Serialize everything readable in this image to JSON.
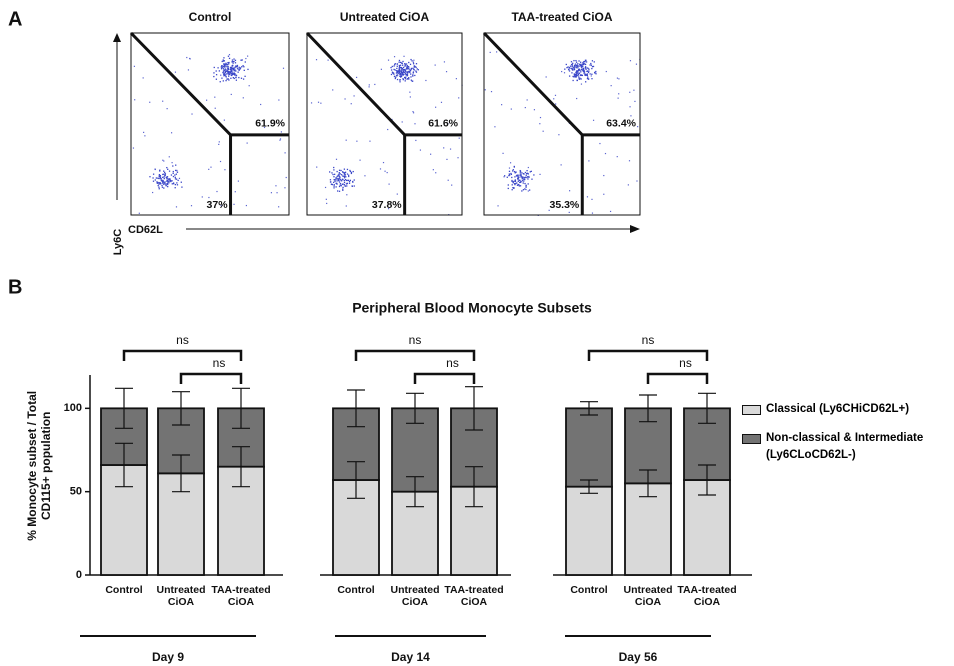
{
  "panel_labels": [
    "A",
    "B"
  ],
  "panel_a": {
    "plots": [
      {
        "title": "Control",
        "upper_gate": "61.9%",
        "lower_gate": "37%"
      },
      {
        "title": "Untreated CiOA",
        "upper_gate": "61.6%",
        "lower_gate": "37.8%"
      },
      {
        "title": "TAA-treated CiOA",
        "upper_gate": "63.4%",
        "lower_gate": "35.3%"
      }
    ],
    "y_axis_label": "Ly6C",
    "x_axis_label": "CD62L"
  },
  "chart_data": {
    "type": "bar",
    "stacked": true,
    "title": "Peripheral Blood Monocyte Subsets",
    "y_label": "% Monocyte subset / Total CD115+ population",
    "categories": [
      "Control",
      "Untreated CiOA",
      "TAA-treated CiOA",
      "Control",
      "Untreated CiOA",
      "TAA-treated CiOA",
      "Control",
      "Untreated CiOA",
      "TAA-treated CiOA"
    ],
    "groups": [
      "Day 9",
      "Day 14",
      "Day 56"
    ],
    "series": [
      {
        "name": "Classical (Ly6CHiCD62L+)",
        "color": "#d9d9d9",
        "values": [
          66,
          61,
          65,
          57,
          50,
          53,
          53,
          55,
          57
        ],
        "errors": [
          13,
          11,
          12,
          11,
          9,
          12,
          4,
          8,
          9
        ]
      },
      {
        "name": "Non-classical & Intermediate (Ly6CLoCD62L-)",
        "color": "#737373",
        "values": [
          34,
          39,
          35,
          43,
          50,
          47,
          47,
          45,
          43
        ],
        "errors": [
          12,
          10,
          12,
          11,
          9,
          13,
          4,
          8,
          9
        ]
      }
    ],
    "ylim": [
      0,
      120
    ],
    "yticks": [
      0,
      50,
      100
    ],
    "significance_labels": [
      "ns",
      "ns",
      "ns",
      "ns",
      "ns",
      "ns"
    ]
  }
}
